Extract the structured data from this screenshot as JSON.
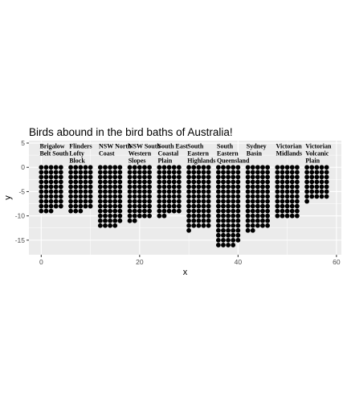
{
  "chart_data": {
    "type": "scatter",
    "title": "Birds abound in the bird baths of Australia!",
    "xlabel": "x",
    "ylabel": "y",
    "xlim": [
      -2.5,
      61
    ],
    "ylim": [
      -18,
      5.5
    ],
    "x_ticks": [
      0,
      20,
      40,
      60
    ],
    "y_ticks": [
      5,
      0,
      -5,
      -10,
      -15
    ],
    "grid": true,
    "panel_background": "#ebebeb",
    "grid_color": "#ffffff",
    "point_color": "#000000",
    "groups": [
      {
        "label": [
          "Brigalow",
          "Belt South"
        ],
        "label_x": -0.3,
        "label_y": 4.3,
        "x_start": 0,
        "columns": [
          10,
          10,
          10,
          9,
          9
        ]
      },
      {
        "label": [
          "Flinders",
          "Lofty",
          "Block"
        ],
        "label_x": 5.7,
        "label_y": 4.3,
        "x_start": 6,
        "columns": [
          10,
          10,
          10,
          9,
          9
        ]
      },
      {
        "label": [
          "NSW North",
          "Coast"
        ],
        "label_x": 11.7,
        "label_y": 4.3,
        "x_start": 12,
        "columns": [
          13,
          13,
          13,
          13,
          12
        ]
      },
      {
        "label": [
          "NSW South",
          "Western",
          "Slopes"
        ],
        "label_x": 17.7,
        "label_y": 4.3,
        "x_start": 18,
        "columns": [
          12,
          12,
          11,
          11,
          11
        ]
      },
      {
        "label": [
          "South East",
          "Coastal",
          "Plain"
        ],
        "label_x": 23.7,
        "label_y": 4.3,
        "x_start": 24,
        "columns": [
          11,
          11,
          10,
          10,
          10
        ]
      },
      {
        "label": [
          "South",
          "Eastern",
          "Highlands"
        ],
        "label_x": 29.7,
        "label_y": 4.3,
        "x_start": 30,
        "columns": [
          14,
          13,
          13,
          13,
          13
        ]
      },
      {
        "label": [
          "South",
          "Eastern",
          "Queensland"
        ],
        "label_x": 35.7,
        "label_y": 4.3,
        "x_start": 36,
        "columns": [
          17,
          17,
          17,
          17,
          16
        ]
      },
      {
        "label": [
          "Sydney",
          "Basin"
        ],
        "label_x": 41.7,
        "label_y": 4.3,
        "x_start": 42,
        "columns": [
          14,
          14,
          13,
          13,
          13
        ]
      },
      {
        "label": [
          "Victorian",
          "Midlands"
        ],
        "label_x": 47.7,
        "label_y": 4.3,
        "x_start": 48,
        "columns": [
          11,
          11,
          11,
          11,
          11
        ]
      },
      {
        "label": [
          "Victorian",
          "Volcanic",
          "Plain"
        ],
        "label_x": 53.7,
        "label_y": 4.3,
        "x_start": 54,
        "columns": [
          8,
          7,
          7,
          7,
          7
        ]
      }
    ]
  }
}
